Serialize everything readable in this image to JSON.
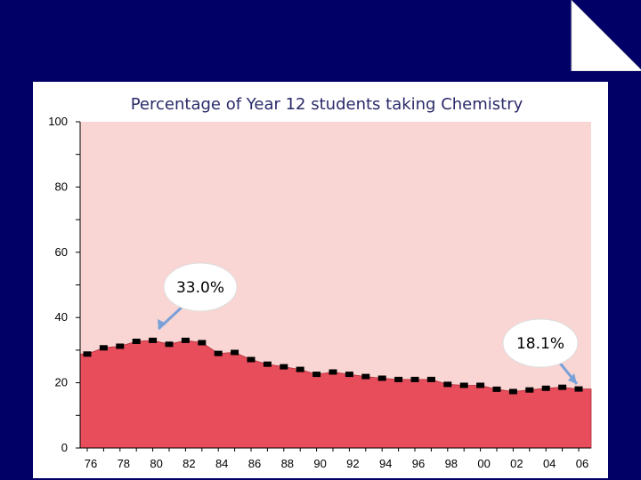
{
  "chart_data": {
    "type": "area",
    "title": "Percentage of Year 12 students taking Chemistry",
    "xlabel": "",
    "ylabel": "",
    "ylim": [
      0,
      100
    ],
    "yticks": [
      0,
      20,
      40,
      60,
      80,
      100
    ],
    "xtick_labels": [
      "76",
      "78",
      "80",
      "82",
      "84",
      "86",
      "88",
      "90",
      "92",
      "94",
      "96",
      "98",
      "00",
      "02",
      "04",
      "06"
    ],
    "years": [
      1976,
      1977,
      1978,
      1979,
      1980,
      1981,
      1982,
      1983,
      1984,
      1985,
      1986,
      1987,
      1988,
      1989,
      1990,
      1991,
      1992,
      1993,
      1994,
      1995,
      1996,
      1997,
      1998,
      1999,
      2000,
      2001,
      2002,
      2003,
      2004,
      2005,
      2006
    ],
    "series": [
      {
        "name": "Chemistry",
        "values": [
          28.8,
          30.7,
          31.2,
          32.7,
          33.0,
          31.8,
          33.0,
          32.3,
          29.0,
          29.3,
          27.1,
          25.7,
          24.9,
          24.1,
          22.6,
          23.3,
          22.6,
          21.9,
          21.4,
          21.0,
          21.0,
          21.0,
          19.5,
          19.2,
          19.2,
          18.0,
          17.3,
          17.8,
          18.3,
          18.6,
          18.1
        ]
      }
    ],
    "annotations": [
      {
        "label": "33.0%",
        "year": 1980,
        "value": 33.0
      },
      {
        "label": "18.1%",
        "year": 2006,
        "value": 18.1
      }
    ],
    "colors": {
      "plot_background": "#f9d6d4",
      "area_fill": "#e84d5b",
      "marker": "#000000",
      "slide_background": "#000066",
      "title_color": "#2a2a6a"
    }
  }
}
